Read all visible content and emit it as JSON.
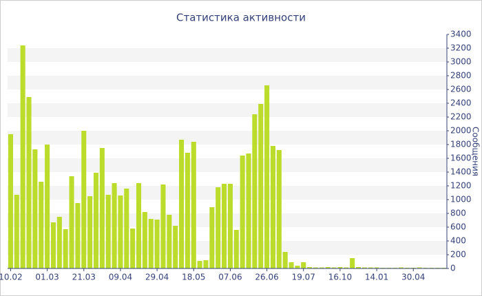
{
  "chart_data": {
    "type": "bar",
    "title": "Статистика активности",
    "y_axis_label": "Сообщения",
    "categories": [
      "10.02",
      null,
      null,
      null,
      null,
      null,
      "01.03",
      null,
      null,
      null,
      null,
      null,
      "21.03",
      null,
      null,
      null,
      null,
      null,
      "09.04",
      null,
      null,
      null,
      null,
      null,
      "29.04",
      null,
      null,
      null,
      null,
      null,
      "18.05",
      null,
      null,
      null,
      null,
      null,
      "07.06",
      null,
      null,
      null,
      null,
      null,
      "26.06",
      null,
      null,
      null,
      null,
      null,
      "19.07",
      null,
      null,
      null,
      null,
      null,
      "16.10",
      null,
      null,
      null,
      null,
      null,
      "14.01",
      null,
      null,
      null,
      null,
      null,
      "30.04",
      null,
      null,
      null,
      null,
      null
    ],
    "values": [
      1950,
      1070,
      3240,
      2490,
      1730,
      1260,
      1800,
      670,
      750,
      570,
      1340,
      950,
      2000,
      1050,
      1390,
      1750,
      1070,
      1240,
      1060,
      1160,
      580,
      1240,
      820,
      720,
      710,
      1220,
      780,
      620,
      1870,
      1680,
      1840,
      110,
      120,
      890,
      1180,
      1230,
      1230,
      560,
      1640,
      1670,
      2240,
      2390,
      2660,
      1780,
      1720,
      240,
      90,
      40,
      90,
      20,
      15,
      15,
      20,
      15,
      20,
      15,
      150,
      20,
      15,
      15,
      15,
      10,
      10,
      10,
      15,
      10,
      10,
      15,
      10,
      10,
      10,
      10
    ],
    "color": "#bcdc2c",
    "ylim": [
      0,
      3400
    ],
    "yticks": [
      0,
      200,
      400,
      600,
      800,
      1000,
      1200,
      1400,
      1600,
      1800,
      2000,
      2200,
      2400,
      2600,
      2800,
      3000,
      3200,
      3400
    ],
    "grid": true
  }
}
